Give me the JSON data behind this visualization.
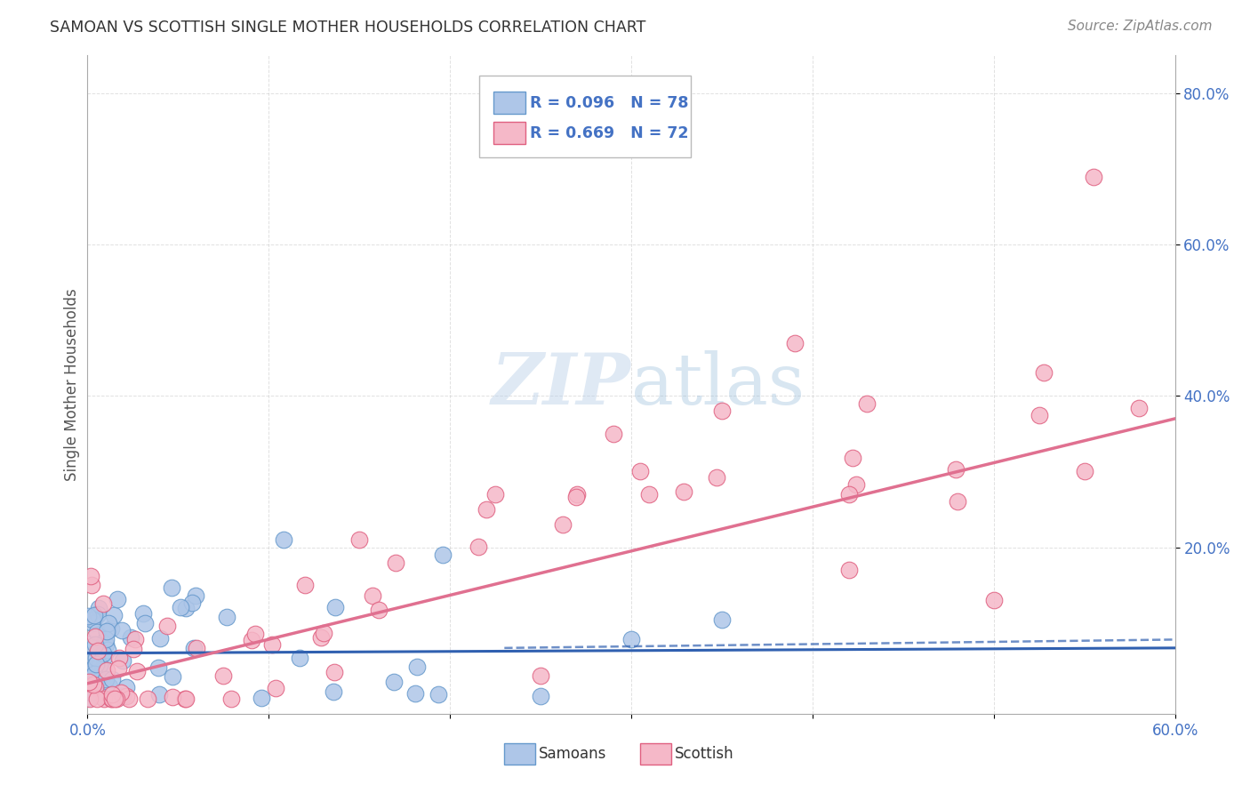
{
  "title": "SAMOAN VS SCOTTISH SINGLE MOTHER HOUSEHOLDS CORRELATION CHART",
  "source": "Source: ZipAtlas.com",
  "ylabel": "Single Mother Households",
  "xlim": [
    0.0,
    0.6
  ],
  "ylim": [
    -0.02,
    0.85
  ],
  "xtick_vals": [
    0.0,
    0.1,
    0.2,
    0.3,
    0.4,
    0.5,
    0.6
  ],
  "xtick_labels": [
    "0.0%",
    "",
    "",
    "",
    "",
    "",
    "60.0%"
  ],
  "ytick_vals": [
    0.2,
    0.4,
    0.6,
    0.8
  ],
  "ytick_labels": [
    "20.0%",
    "40.0%",
    "60.0%",
    "80.0%"
  ],
  "samoan_color": "#aec6e8",
  "scottish_color": "#f5b8c8",
  "samoan_edge": "#6699cc",
  "scottish_edge": "#e06080",
  "samoan_line_color": "#3060b0",
  "scottish_line_color": "#e07090",
  "legend_R_samoan": "R = 0.096",
  "legend_N_samoan": "N = 78",
  "legend_R_scottish": "R = 0.669",
  "legend_N_scottish": "N = 72",
  "background_color": "#ffffff",
  "grid_color": "#cccccc",
  "title_color": "#333333",
  "source_color": "#888888",
  "tick_color": "#4472c4",
  "legend_text_color": "#4472c4"
}
